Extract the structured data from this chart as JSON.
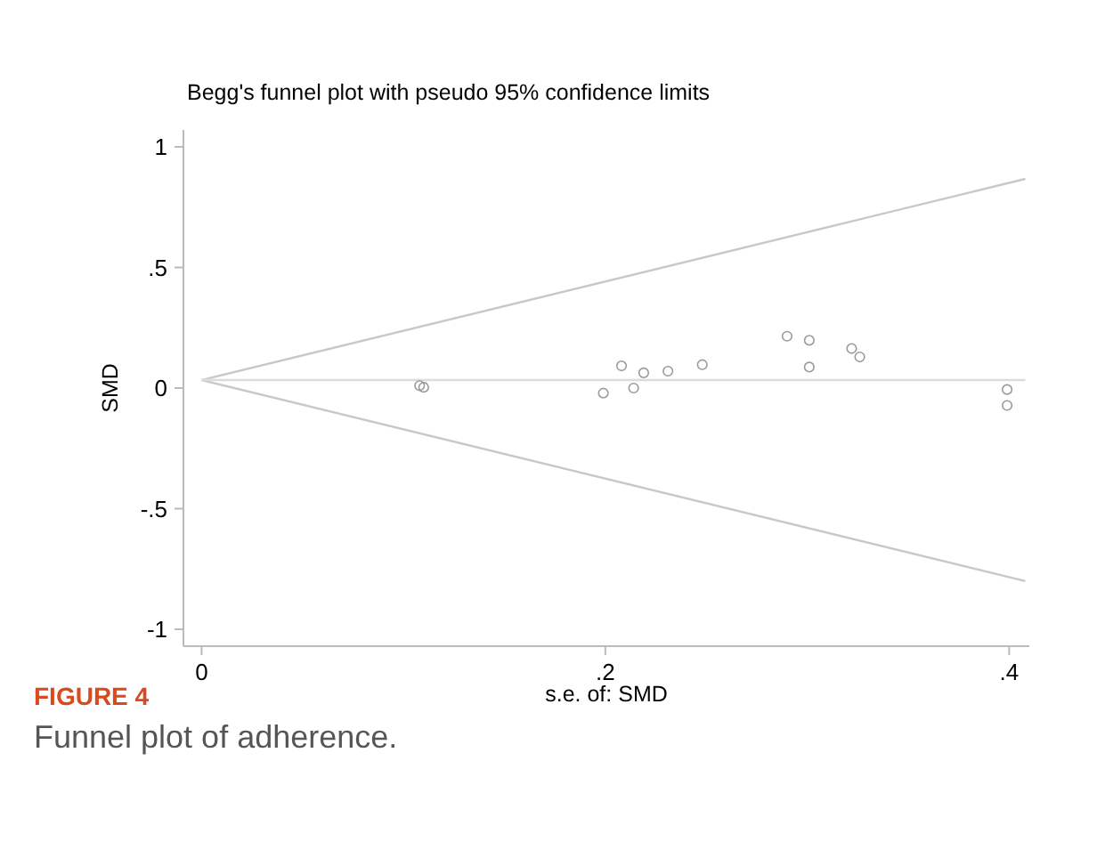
{
  "chart_data": {
    "type": "scatter",
    "title": "Begg's funnel plot with pseudo 95% confidence limits",
    "xlabel": "s.e. of: SMD",
    "ylabel": "SMD",
    "annotations": [
      "FIGURE 4",
      "Funnel plot of adherence."
    ],
    "xlim": [
      -0.009,
      0.41
    ],
    "ylim": [
      -1.07,
      1.07
    ],
    "xticks": [
      0,
      {
        "value": 0.2,
        "label": ".2"
      },
      {
        "value": 0.4,
        "label": ".4"
      }
    ],
    "yticks": [
      {
        "value": -1,
        "label": "-1"
      },
      {
        "value": -0.5,
        "label": "-.5"
      },
      0,
      {
        "value": 0.5,
        "label": ".5"
      },
      1
    ],
    "grid": false,
    "series": [
      {
        "type": "line",
        "color": "#c8c8c8",
        "x": [
          0,
          0.408
        ],
        "values": [
          0.033,
          0.867
        ]
      },
      {
        "type": "line",
        "color": "#c8c8c8",
        "x": [
          0,
          0.408
        ],
        "values": [
          0.033,
          -0.8
        ]
      },
      {
        "type": "line",
        "color": "#dcdcdc",
        "x": [
          0,
          0.408
        ],
        "values": [
          0.033,
          0.033
        ]
      },
      {
        "marker": "circle",
        "color": "#9a9a9a",
        "x": [
          0.108,
          0.11,
          0.199,
          0.208,
          0.214,
          0.219,
          0.231,
          0.248,
          0.29,
          0.301,
          0.301,
          0.322,
          0.326,
          0.399,
          0.399
        ],
        "values": [
          0.01,
          0.003,
          -0.021,
          0.092,
          0.0,
          0.063,
          0.07,
          0.097,
          0.215,
          0.198,
          0.087,
          0.164,
          0.129,
          -0.006,
          -0.072
        ]
      }
    ]
  }
}
